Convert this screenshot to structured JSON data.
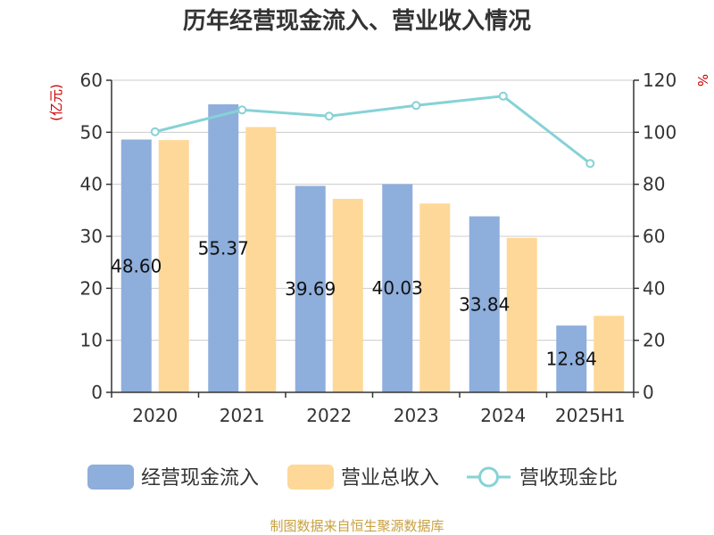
{
  "chart_data": {
    "type": "bar",
    "title": "历年经营现金流入、营业收入情况",
    "categories": [
      "2020",
      "2021",
      "2022",
      "2023",
      "2024",
      "2025H1"
    ],
    "y_left": {
      "unit_label": "(亿元)",
      "lim": [
        0,
        60
      ],
      "ticks": [
        "0",
        "10",
        "20",
        "30",
        "40",
        "50",
        "60"
      ]
    },
    "y_right": {
      "unit_label": "%",
      "lim": [
        0,
        120
      ],
      "ticks": [
        "0",
        "20",
        "40",
        "60",
        "80",
        "100",
        "120"
      ]
    },
    "grid": true,
    "legend_position": "bottom",
    "series": [
      {
        "name": "经营现金流入",
        "type": "bar",
        "axis": "left",
        "color": "#8eaedc",
        "values": [
          48.6,
          55.37,
          39.69,
          40.03,
          33.84,
          12.84
        ],
        "labels": [
          "48.60",
          "55.37",
          "39.69",
          "40.03",
          "33.84",
          "12.84"
        ]
      },
      {
        "name": "营业总收入",
        "type": "bar",
        "axis": "left",
        "color": "#fed898",
        "values": [
          48.5,
          51.0,
          37.2,
          36.3,
          29.7,
          14.7
        ]
      },
      {
        "name": "营收现金比",
        "type": "line",
        "axis": "right",
        "color": "#86d2d6",
        "values": [
          100.2,
          108.6,
          106.2,
          110.3,
          113.9,
          88.0
        ]
      }
    ]
  },
  "source": "制图数据来自恒生聚源数据库",
  "colors": {
    "unit_label": "#cc0000",
    "source": "#c8a040",
    "axis": "#333333",
    "grid": "#cccccc"
  }
}
